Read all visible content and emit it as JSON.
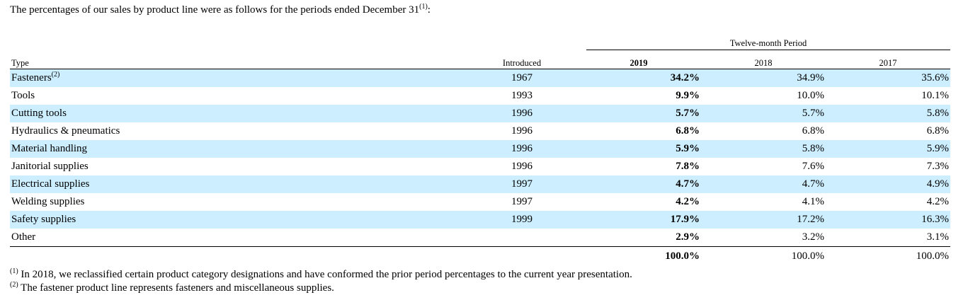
{
  "intro": {
    "text": "The percentages of our sales by product line were as follows for the periods ended December 31",
    "footnote_ref": "(1)",
    "suffix": ":"
  },
  "table": {
    "period_label": "Twelve-month Period",
    "headers": {
      "type": "Type",
      "introduced": "Introduced",
      "y2019": "2019",
      "y2018": "2018",
      "y2017": "2017"
    },
    "rows": [
      {
        "type": "Fasteners",
        "footnote": "(2)",
        "introduced": "1967",
        "y2019": "34.2%",
        "y2018": "34.9%",
        "y2017": "35.6%"
      },
      {
        "type": "Tools",
        "footnote": "",
        "introduced": "1993",
        "y2019": "9.9%",
        "y2018": "10.0%",
        "y2017": "10.1%"
      },
      {
        "type": "Cutting tools",
        "footnote": "",
        "introduced": "1996",
        "y2019": "5.7%",
        "y2018": "5.7%",
        "y2017": "5.8%"
      },
      {
        "type": "Hydraulics & pneumatics",
        "footnote": "",
        "introduced": "1996",
        "y2019": "6.8%",
        "y2018": "6.8%",
        "y2017": "6.8%"
      },
      {
        "type": "Material handling",
        "footnote": "",
        "introduced": "1996",
        "y2019": "5.9%",
        "y2018": "5.8%",
        "y2017": "5.9%"
      },
      {
        "type": "Janitorial supplies",
        "footnote": "",
        "introduced": "1996",
        "y2019": "7.8%",
        "y2018": "7.6%",
        "y2017": "7.3%"
      },
      {
        "type": "Electrical supplies",
        "footnote": "",
        "introduced": "1997",
        "y2019": "4.7%",
        "y2018": "4.7%",
        "y2017": "4.9%"
      },
      {
        "type": "Welding supplies",
        "footnote": "",
        "introduced": "1997",
        "y2019": "4.2%",
        "y2018": "4.1%",
        "y2017": "4.2%"
      },
      {
        "type": "Safety supplies",
        "footnote": "",
        "introduced": "1999",
        "y2019": "17.9%",
        "y2018": "17.2%",
        "y2017": "16.3%"
      },
      {
        "type": "Other",
        "footnote": "",
        "introduced": "",
        "y2019": "2.9%",
        "y2018": "3.2%",
        "y2017": "3.1%"
      }
    ],
    "totals": {
      "y2019": "100.0%",
      "y2018": "100.0%",
      "y2017": "100.0%"
    }
  },
  "footnotes": [
    {
      "marker": "(1)",
      "text": " In 2018, we reclassified certain product category designations and have conformed the prior period percentages to the current year presentation."
    },
    {
      "marker": "(2)",
      "text": " The fastener product line represents fasteners and miscellaneous supplies."
    }
  ],
  "colors": {
    "row_shade": "#cceeff",
    "rule": "#000000"
  }
}
